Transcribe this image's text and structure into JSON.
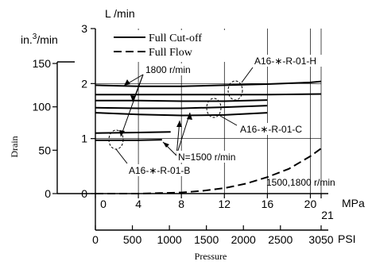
{
  "chart_data": {
    "type": "line",
    "title": "",
    "units": {
      "drain_metric": "L /min",
      "drain_imperial_prefix": "in.",
      "drain_imperial_exp": "3",
      "drain_imperial_suffix": "/min",
      "pressure_metric": "MPa",
      "pressure_imperial": "PSI"
    },
    "axis_labels": {
      "y": "Drain",
      "x": "Pressure"
    },
    "x_axis_mpa": {
      "range": [
        0,
        21
      ],
      "ticks": [
        0,
        4,
        8,
        12,
        16,
        20
      ],
      "tick_labels": [
        "0",
        "4",
        "8",
        "12",
        "16",
        "20"
      ],
      "end_label": "21"
    },
    "x_axis_psi": {
      "range": [
        0,
        3050
      ],
      "ticks": [
        0,
        500,
        1000,
        1500,
        2000,
        2500,
        3050
      ],
      "tick_labels": [
        "0",
        "500",
        "1000",
        "1500",
        "2000",
        "2500",
        "3050"
      ]
    },
    "y_axis_lpm": {
      "range": [
        0,
        3
      ],
      "ticks": [
        0,
        1,
        2,
        3
      ],
      "tick_labels": [
        "0",
        "1",
        "2",
        "3"
      ]
    },
    "y_axis_in3": {
      "ticks": [
        0,
        50,
        100,
        150
      ],
      "tick_labels": [
        "0",
        "50",
        "100",
        "150"
      ]
    },
    "grid": true,
    "legend": {
      "placement": "top-center",
      "entries": [
        {
          "label": "Full Cut-off",
          "style": "solid"
        },
        {
          "label": "Full Flow",
          "style": "dashed"
        }
      ]
    },
    "series": [
      {
        "id": "H-1800-upper",
        "style": "solid",
        "x": [
          0,
          4,
          8,
          12,
          16,
          20,
          21
        ],
        "y": [
          1.97,
          1.95,
          1.95,
          1.97,
          1.99,
          2.02,
          2.04
        ]
      },
      {
        "id": "H-1800-lower",
        "style": "solid",
        "x": [
          0,
          4,
          8,
          12,
          16,
          21
        ],
        "y": [
          1.8,
          1.8,
          1.8,
          1.8,
          1.8,
          1.81
        ]
      },
      {
        "id": "C-1800",
        "style": "solid",
        "x": [
          0,
          4,
          8,
          12,
          16
        ],
        "y": [
          1.69,
          1.69,
          1.68,
          1.68,
          1.7
        ]
      },
      {
        "id": "C-1500-upper",
        "style": "solid",
        "x": [
          0,
          4,
          8,
          12,
          16
        ],
        "y": [
          1.56,
          1.55,
          1.55,
          1.57,
          1.6
        ]
      },
      {
        "id": "C-1500-lower",
        "style": "solid",
        "x": [
          0,
          4,
          8,
          12,
          16
        ],
        "y": [
          1.47,
          1.44,
          1.42,
          1.43,
          1.47
        ]
      },
      {
        "id": "B-1800",
        "style": "solid",
        "x": [
          0,
          4,
          7
        ],
        "y": [
          1.1,
          1.11,
          1.12
        ]
      },
      {
        "id": "B-1500",
        "style": "solid",
        "x": [
          0,
          4,
          6.2
        ],
        "y": [
          0.97,
          0.97,
          0.98
        ]
      },
      {
        "id": "full-flow",
        "style": "dashed",
        "x": [
          0,
          2,
          4,
          6,
          8,
          10,
          12,
          14,
          16,
          18,
          20,
          21
        ],
        "y": [
          0,
          0,
          0,
          0.01,
          0.02,
          0.05,
          0.1,
          0.18,
          0.3,
          0.45,
          0.68,
          0.82
        ]
      }
    ],
    "annotations": {
      "speed_1800": "1800 r/min",
      "speed_1500": "N=1500 r/min",
      "model_h": "A16-∗-R-01-H",
      "model_c": "A16-∗-R-01-C",
      "model_b": "A16-∗-R-01-B",
      "full_flow_speeds": "1500,1800 r/min"
    }
  }
}
